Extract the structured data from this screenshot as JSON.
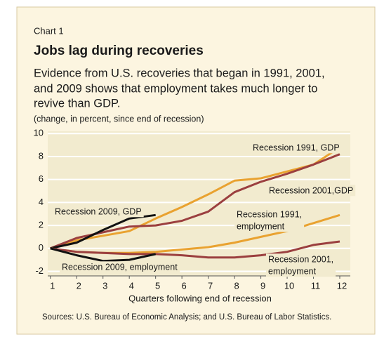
{
  "chart_data": {
    "type": "line",
    "kicker": "Chart 1",
    "title": "Jobs lag during recoveries",
    "subtitle": [
      "Evidence from U.S. recoveries that began in 1991, 2001,",
      "and 2009 shows that employment takes much longer to",
      "revive than GDP."
    ],
    "ylabel": "(change, in percent, since end of recession)",
    "xlabel": "Quarters following end of recession",
    "source": "Sources: U.S. Bureau of Economic Analysis; and U.S. Bureau of Labor Statistics.",
    "x": [
      1,
      2,
      3,
      4,
      5,
      6,
      7,
      8,
      9,
      10,
      11,
      12
    ],
    "xlim": [
      0.9,
      12.4
    ],
    "xticks": [
      1,
      2,
      3,
      4,
      5,
      6,
      7,
      8,
      9,
      10,
      11,
      12
    ],
    "ylim": [
      -2.4,
      10.2
    ],
    "yticks": [
      -2,
      0,
      2,
      4,
      6,
      8,
      10
    ],
    "grid": true,
    "series": [
      {
        "name": "Recession 1991, GDP",
        "color": "#e9a230",
        "values": [
          0,
          0.7,
          1.1,
          1.5,
          2.6,
          3.6,
          4.7,
          5.9,
          6.1,
          6.7,
          7.3,
          8.8
        ]
      },
      {
        "name": "Recession 2001,GDP",
        "color": "#9b3f3f",
        "values": [
          0,
          0.9,
          1.4,
          1.9,
          2.0,
          2.4,
          3.2,
          4.9,
          5.8,
          6.5,
          7.3,
          8.2
        ]
      },
      {
        "name": "Recession 2009, GDP",
        "color": "#111111",
        "values": [
          0,
          0.5,
          1.6,
          2.6,
          2.9,
          null,
          null,
          null,
          null,
          null,
          null,
          null
        ]
      },
      {
        "name": [
          "Recession 1991,",
          "employment"
        ],
        "color": "#e9a230",
        "values": [
          0,
          -0.3,
          -0.4,
          -0.4,
          -0.3,
          -0.1,
          0.1,
          0.5,
          1.0,
          1.5,
          2.2,
          2.9
        ]
      },
      {
        "name": [
          "Recession 2001,",
          "employment"
        ],
        "color": "#9b3f3f",
        "values": [
          0,
          -0.3,
          -0.4,
          -0.5,
          -0.5,
          -0.6,
          -0.8,
          -0.8,
          -0.6,
          -0.3,
          0.3,
          0.6
        ]
      },
      {
        "name": "Recession 2009, employment",
        "color": "#111111",
        "values": [
          0,
          -0.6,
          -1.1,
          -1.0,
          -0.5,
          null,
          null,
          null,
          null,
          null,
          null,
          null
        ]
      }
    ]
  }
}
